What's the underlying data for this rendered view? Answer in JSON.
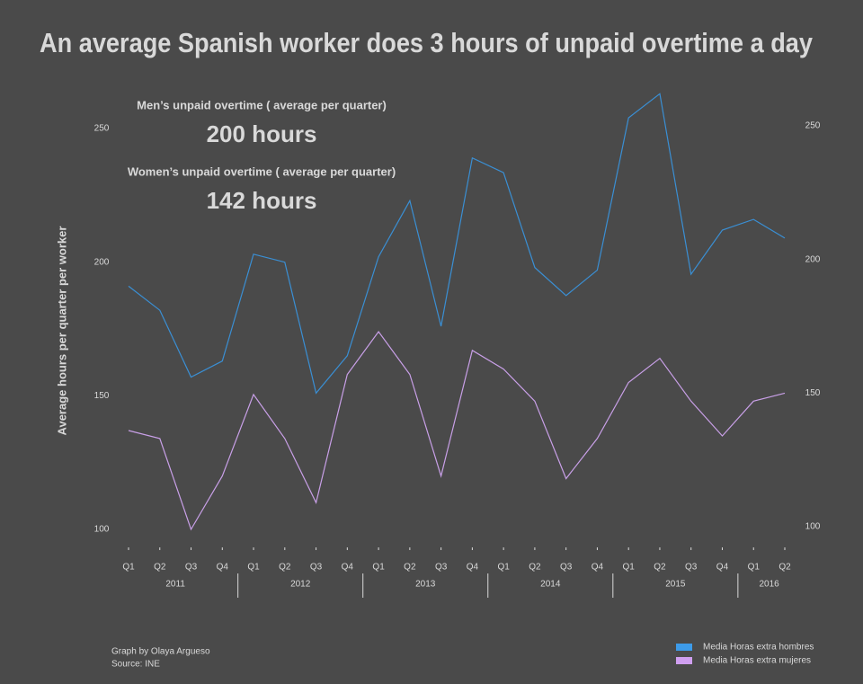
{
  "chart_data": {
    "type": "line",
    "title": "An average Spanish worker does 3 hours of unpaid overtime a day",
    "y_label": "Average hours per quarter per worker",
    "annotations": [
      {
        "label": "Men’s unpaid overtime ( average per quarter)",
        "value": "200 hours"
      },
      {
        "label": "Women’s unpaid overtime ( average per quarter)",
        "value": "142 hours"
      }
    ],
    "credits": [
      "Graph by Olaya Argueso",
      "Source: INE"
    ],
    "categories": [
      "Q1",
      "Q2",
      "Q3",
      "Q4",
      "Q1",
      "Q2",
      "Q3",
      "Q4",
      "Q1",
      "Q2",
      "Q3",
      "Q4",
      "Q1",
      "Q2",
      "Q3",
      "Q4",
      "Q1",
      "Q2",
      "Q3",
      "Q4",
      "Q1",
      "Q2"
    ],
    "year_groups": [
      "2011",
      "2012",
      "2013",
      "2014",
      "2015",
      "2016"
    ],
    "series": [
      {
        "name": "Media Horas extra hombres",
        "color": "#3a8fd4",
        "legend_color": "#3d9be9",
        "values": [
          191,
          182,
          157,
          163,
          203,
          200,
          151,
          165,
          202,
          223,
          176,
          239,
          233.5,
          198,
          187.5,
          197,
          254,
          263,
          195.5,
          212,
          216,
          209
        ]
      },
      {
        "name": "Media Horas extra mujeres",
        "color": "#c9a0e8",
        "legend_color": "#cf9ff0",
        "values": [
          137,
          134,
          100,
          120,
          150.5,
          134,
          110,
          158,
          174,
          158,
          120,
          167,
          160,
          148,
          119,
          134,
          155,
          164,
          148,
          135,
          148,
          151
        ]
      }
    ],
    "ylim": [
      95,
      265
    ],
    "yticks": [
      100,
      150,
      200,
      250
    ],
    "legend": "bottom-right"
  }
}
